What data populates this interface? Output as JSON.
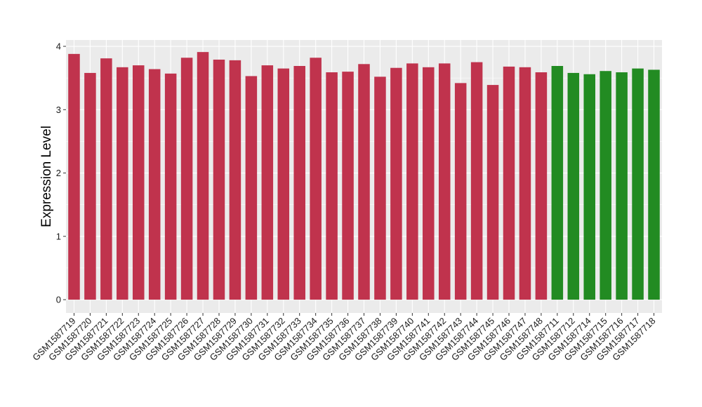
{
  "chart_data": {
    "type": "bar",
    "title": "",
    "xlabel": "",
    "ylabel": "Expression Level",
    "ylim": [
      0,
      4.1
    ],
    "yticks": [
      0,
      1,
      2,
      3,
      4
    ],
    "grid": true,
    "colors": {
      "panel_background": "#ebebeb",
      "grid": "#ffffff",
      "group_red": "#c0334d",
      "group_green": "#228b22"
    },
    "categories": [
      "GSM1587719",
      "GSM1587720",
      "GSM1587721",
      "GSM1587722",
      "GSM1587723",
      "GSM1587724",
      "GSM1587725",
      "GSM1587726",
      "GSM1587727",
      "GSM1587728",
      "GSM1587729",
      "GSM1587730",
      "GSM1587731",
      "GSM1587732",
      "GSM1587733",
      "GSM1587734",
      "GSM1587735",
      "GSM1587736",
      "GSM1587737",
      "GSM1587738",
      "GSM1587739",
      "GSM1587740",
      "GSM1587741",
      "GSM1587742",
      "GSM1587743",
      "GSM1587744",
      "GSM1587745",
      "GSM1587746",
      "GSM1587747",
      "GSM1587748",
      "GSM1587711",
      "GSM1587712",
      "GSM1587714",
      "GSM1587715",
      "GSM1587716",
      "GSM1587717",
      "GSM1587718"
    ],
    "values": [
      3.88,
      3.58,
      3.81,
      3.67,
      3.7,
      3.64,
      3.57,
      3.82,
      3.91,
      3.79,
      3.78,
      3.53,
      3.7,
      3.65,
      3.69,
      3.82,
      3.59,
      3.6,
      3.72,
      3.52,
      3.66,
      3.73,
      3.67,
      3.73,
      3.42,
      3.75,
      3.39,
      3.68,
      3.67,
      3.59,
      3.69,
      3.58,
      3.56,
      3.61,
      3.59,
      3.65,
      3.63
    ],
    "bar_colors": [
      "#c0334d",
      "#c0334d",
      "#c0334d",
      "#c0334d",
      "#c0334d",
      "#c0334d",
      "#c0334d",
      "#c0334d",
      "#c0334d",
      "#c0334d",
      "#c0334d",
      "#c0334d",
      "#c0334d",
      "#c0334d",
      "#c0334d",
      "#c0334d",
      "#c0334d",
      "#c0334d",
      "#c0334d",
      "#c0334d",
      "#c0334d",
      "#c0334d",
      "#c0334d",
      "#c0334d",
      "#c0334d",
      "#c0334d",
      "#c0334d",
      "#c0334d",
      "#c0334d",
      "#c0334d",
      "#228b22",
      "#228b22",
      "#228b22",
      "#228b22",
      "#228b22",
      "#228b22",
      "#228b22"
    ]
  }
}
